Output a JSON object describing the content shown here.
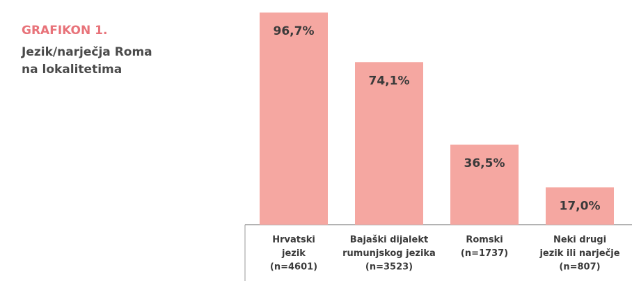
{
  "chart_data": {
    "type": "bar",
    "title": "GRAFIKON 1.",
    "subtitle": [
      "Jezik/narječja Roma",
      "na lokalitetima"
    ],
    "categories": [
      [
        "Hrvatski",
        "jezik",
        "(n=4601)"
      ],
      [
        "Bajaški dijalekt",
        "rumunjskog jezika",
        "(n=3523)"
      ],
      [
        "Romski",
        "(n=1737)"
      ],
      [
        "Neki drugi",
        "jezik ili narječje",
        "(n=807)"
      ]
    ],
    "values": [
      96.7,
      74.1,
      36.5,
      17.0
    ],
    "value_labels": [
      "96,7%",
      "74,1%",
      "36,5%",
      "17,0%"
    ],
    "color": "#f5a7a1"
  }
}
